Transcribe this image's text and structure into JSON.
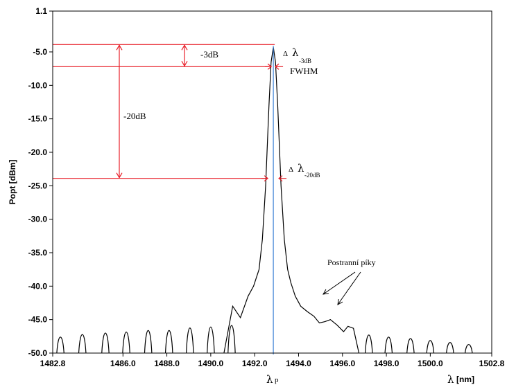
{
  "chart_data": {
    "type": "line",
    "x_axis": {
      "label": "[nm]",
      "label_symbol": "λ",
      "peak_symbol": "λ",
      "peak_subscript": "p",
      "range": [
        1482.8,
        1502.8
      ],
      "ticks": [
        1482.8,
        1486.0,
        1488.0,
        1490.0,
        1492.0,
        1494.0,
        1496.0,
        1498.0,
        1500.0,
        1502.8
      ],
      "tick_labels": [
        "1482.8",
        "1486.0",
        "1488.0",
        "1490.0",
        "1492.0",
        "1494.0",
        "1496.0",
        "1498.0",
        "1500.0",
        "1502.8"
      ]
    },
    "y_axis": {
      "label": "Popt [dBm]",
      "range": [
        -50.0,
        1.1
      ],
      "ticks": [
        1.1,
        -5.0,
        -10.0,
        -15.0,
        -20.0,
        -25.0,
        -30.0,
        -35.0,
        -40.0,
        -45.0,
        -50.0
      ],
      "tick_labels": [
        "1.1",
        "-5.0",
        "-10.0",
        "-15.0",
        "-20.0",
        "-25.0",
        "-30.0",
        "-35.0",
        "-40.0",
        "-45.0",
        "-50.0"
      ]
    },
    "peak": {
      "x": 1492.85,
      "y": -4.3
    },
    "reference_levels": [
      {
        "name": "peak",
        "y": -3.9
      },
      {
        "name": "-3dB",
        "y": -7.2
      },
      {
        "name": "-20dB",
        "y": -23.9
      }
    ],
    "annotations": {
      "minus3db": "-3dB",
      "minus20db": "-20dB",
      "delta_symbol": "Δ",
      "lambda_symbol": "λ",
      "width3db_sub": "-3dB",
      "fwhm": "FWHM",
      "width20db_sub": "-20dB",
      "side_peaks": "Postranní píky"
    },
    "series": [
      {
        "lobes": [
          {
            "x": 1483.15,
            "y": -46.8
          },
          {
            "x": 1484.15,
            "y": -46.3
          },
          {
            "x": 1485.2,
            "y": -46.0
          },
          {
            "x": 1486.15,
            "y": -45.8
          },
          {
            "x": 1487.15,
            "y": -45.5
          },
          {
            "x": 1488.1,
            "y": -45.5
          },
          {
            "x": 1489.05,
            "y": -45.0
          },
          {
            "x": 1490.0,
            "y": -44.8
          },
          {
            "x": 1490.95,
            "y": -44.5
          }
        ],
        "right_lobes": [
          {
            "x": 1497.2,
            "y": -46.4
          },
          {
            "x": 1498.1,
            "y": -46.8
          },
          {
            "x": 1499.1,
            "y": -47.1
          },
          {
            "x": 1500.0,
            "y": -47.5
          },
          {
            "x": 1500.9,
            "y": -47.9
          },
          {
            "x": 1501.75,
            "y": -48.3
          }
        ],
        "main": [
          [
            1490.6,
            -50.0
          ],
          [
            1491.0,
            -43.0
          ],
          [
            1491.35,
            -44.7
          ],
          [
            1491.7,
            -41.5
          ],
          [
            1491.95,
            -40.0
          ],
          [
            1492.2,
            -37.5
          ],
          [
            1492.35,
            -33.0
          ],
          [
            1492.5,
            -25.0
          ],
          [
            1492.65,
            -13.0
          ],
          [
            1492.75,
            -6.5
          ],
          [
            1492.85,
            -4.3
          ],
          [
            1492.95,
            -6.5
          ],
          [
            1493.05,
            -13.0
          ],
          [
            1493.2,
            -25.0
          ],
          [
            1493.35,
            -33.0
          ],
          [
            1493.5,
            -37.5
          ],
          [
            1493.65,
            -39.5
          ],
          [
            1493.85,
            -41.5
          ],
          [
            1494.1,
            -43.0
          ],
          [
            1494.4,
            -43.8
          ],
          [
            1494.7,
            -44.5
          ],
          [
            1494.95,
            -45.5
          ],
          [
            1495.2,
            -45.3
          ],
          [
            1495.45,
            -45.0
          ],
          [
            1495.75,
            -45.8
          ],
          [
            1496.05,
            -46.8
          ],
          [
            1496.25,
            -46.0
          ],
          [
            1496.5,
            -46.3
          ],
          [
            1496.75,
            -50.0
          ]
        ]
      }
    ]
  }
}
